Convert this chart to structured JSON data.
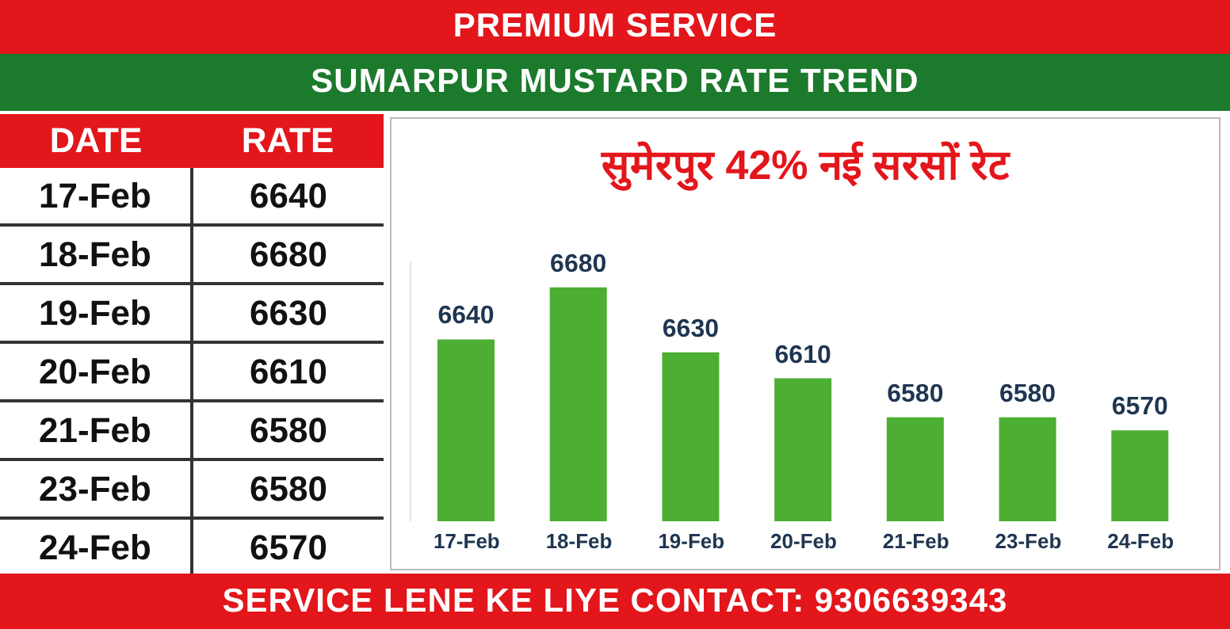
{
  "chart_data": [
    {
      "type": "other",
      "annotations": [
        "DATE",
        "RATE"
      ],
      "categories": [
        "17-Feb",
        "18-Feb",
        "19-Feb",
        "20-Feb",
        "21-Feb",
        "23-Feb",
        "24-Feb"
      ],
      "values": [
        6640,
        6680,
        6630,
        6610,
        6580,
        6580,
        6570
      ],
      "data_labels": true
    },
    {
      "type": "bar",
      "title": "सुमेरपुर 42% नई सरसों रेट",
      "annotations": [
        "PREMIUM SERVICE",
        "SUMARPUR MUSTARD RATE TREND",
        "SERVICE LENE KE LIYE CONTACT: 9306639343"
      ],
      "categories": [
        "17-Feb",
        "18-Feb",
        "19-Feb",
        "20-Feb",
        "21-Feb",
        "23-Feb",
        "24-Feb"
      ],
      "values": [
        6640,
        6680,
        6630,
        6610,
        6580,
        6580,
        6570
      ],
      "color": "#4cae32",
      "ylim": [
        6500,
        6700
      ],
      "tick_labels": "x",
      "data_labels": true
    }
  ]
}
